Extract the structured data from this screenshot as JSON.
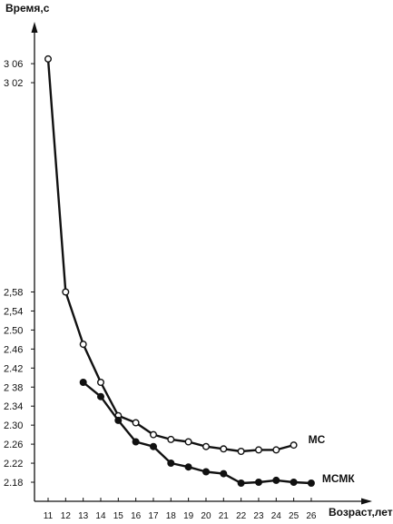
{
  "chart_data": {
    "type": "line",
    "ylabel": "Время,с",
    "xlabel": "Возраст,лет",
    "x": [
      11,
      12,
      13,
      14,
      15,
      16,
      17,
      18,
      19,
      20,
      21,
      22,
      23,
      24,
      25,
      26
    ],
    "x_tick_labels": [
      "11",
      "12",
      "13",
      "14",
      "15",
      "16",
      "17",
      "18",
      "19",
      "20",
      "21",
      "22",
      "23",
      "24",
      "25",
      "26"
    ],
    "y_ticks": [
      2.18,
      2.22,
      2.26,
      2.3,
      2.34,
      2.38,
      2.42,
      2.46,
      2.5,
      2.54,
      2.58,
      3.02,
      3.06
    ],
    "y_tick_labels": [
      "2.18",
      "2.22",
      "2.26",
      "2.30",
      "2.34",
      "2 38",
      "2.42",
      "2.46",
      "2.50",
      "2,54",
      "2,58",
      "3 02",
      "3 06"
    ],
    "ylim": [
      2.17,
      3.08
    ],
    "grid": false,
    "series": [
      {
        "name": "МС",
        "marker": "open-circle",
        "points": [
          [
            11,
            3.07
          ],
          [
            12,
            2.58
          ],
          [
            13,
            2.47
          ],
          [
            14,
            2.39
          ],
          [
            15,
            2.32
          ],
          [
            16,
            2.305
          ],
          [
            17,
            2.28
          ],
          [
            18,
            2.27
          ],
          [
            19,
            2.265
          ],
          [
            20,
            2.255
          ],
          [
            21,
            2.25
          ],
          [
            22,
            2.245
          ],
          [
            23,
            2.248
          ],
          [
            24,
            2.248
          ],
          [
            25,
            2.258
          ]
        ]
      },
      {
        "name": "МСМК",
        "marker": "filled-circle",
        "points": [
          [
            13,
            2.39
          ],
          [
            14,
            2.36
          ],
          [
            15,
            2.31
          ],
          [
            16,
            2.265
          ],
          [
            17,
            2.255
          ],
          [
            18,
            2.22
          ],
          [
            19,
            2.212
          ],
          [
            20,
            2.202
          ],
          [
            21,
            2.198
          ],
          [
            22,
            2.178
          ],
          [
            23,
            2.18
          ],
          [
            24,
            2.184
          ],
          [
            25,
            2.18
          ],
          [
            26,
            2.178
          ]
        ]
      }
    ]
  }
}
